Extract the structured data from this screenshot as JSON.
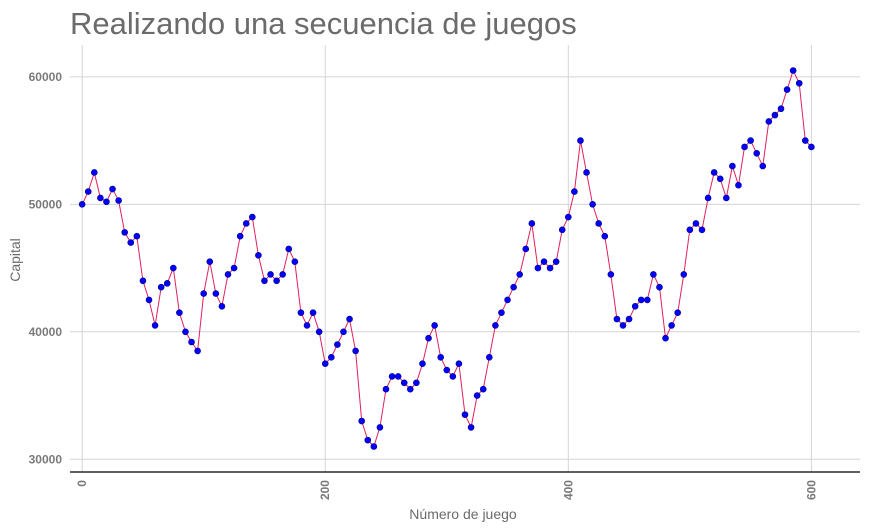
{
  "chart_data": {
    "type": "line",
    "title": "Realizando una secuencia de juegos",
    "xlabel": "Número de juego",
    "ylabel": "Capital",
    "xlim": [
      -10,
      640
    ],
    "ylim": [
      29000,
      62500
    ],
    "x_ticks": [
      0,
      200,
      400,
      600
    ],
    "y_ticks": [
      30000,
      40000,
      50000,
      60000
    ],
    "x_tick_labels": [
      "0",
      "200",
      "400",
      "600"
    ],
    "y_tick_labels": [
      "30000",
      "40000",
      "50000",
      "60000"
    ],
    "grid": true,
    "markers": true,
    "colors": {
      "line": "#e0205a",
      "marker": "#0000ff",
      "marker_edge": "#00008b",
      "grid": "#d4d4d4",
      "axis": "#000000"
    },
    "series": [
      {
        "x": [
          0,
          5,
          10,
          15,
          20,
          25,
          30,
          35,
          40,
          45,
          50,
          55,
          60,
          65,
          70,
          75,
          80,
          85,
          90,
          95,
          100,
          105,
          110,
          115,
          120,
          125,
          130,
          135,
          140,
          145,
          150,
          155,
          160,
          165,
          170,
          175,
          180,
          185,
          190,
          195,
          200,
          205,
          210,
          215,
          220,
          225,
          230,
          235,
          240,
          245,
          250,
          255,
          260,
          265,
          270,
          275,
          280,
          285,
          290,
          295,
          300,
          305,
          310,
          315,
          320,
          325,
          330,
          335,
          340,
          345,
          350,
          355,
          360,
          365,
          370,
          375,
          380,
          385,
          390,
          395,
          400,
          405,
          410,
          415,
          420,
          425,
          430,
          435,
          440,
          445,
          450,
          455,
          460,
          465,
          470,
          475,
          480,
          485,
          490,
          495,
          500,
          505,
          510,
          515,
          520,
          525,
          530,
          535,
          540,
          545,
          550,
          555,
          560,
          565,
          570,
          575,
          580,
          585,
          590,
          595,
          600
        ],
        "values": [
          50000,
          51000,
          52500,
          50500,
          50200,
          51200,
          50300,
          47800,
          47000,
          47500,
          44000,
          42500,
          40500,
          43500,
          43800,
          45000,
          41500,
          40000,
          39200,
          38500,
          43000,
          45500,
          43000,
          42000,
          44500,
          45000,
          47500,
          48500,
          49000,
          46000,
          44000,
          44500,
          44000,
          44500,
          46500,
          45500,
          41500,
          40500,
          41500,
          40000,
          37500,
          38000,
          39000,
          40000,
          41000,
          38500,
          33000,
          31500,
          31000,
          32500,
          35500,
          36500,
          36500,
          36000,
          35500,
          36000,
          37500,
          39500,
          40500,
          38000,
          37000,
          36500,
          37500,
          33500,
          32500,
          35000,
          35500,
          38000,
          40500,
          41500,
          42500,
          43500,
          44500,
          46500,
          48500,
          45000,
          45500,
          45000,
          45500,
          48000,
          49000,
          51000,
          55000,
          52500,
          50000,
          48500,
          47500,
          44500,
          41000,
          40500,
          41000,
          42000,
          42500,
          42500,
          44500,
          43500,
          39500,
          40500,
          41500,
          44500,
          48000,
          48500,
          48000,
          50500,
          52500,
          52000,
          50500,
          53000,
          51500,
          54500,
          55000,
          54000,
          53000,
          56500,
          57000,
          57500,
          59000,
          60500,
          59500,
          55000,
          54500
        ]
      }
    ]
  }
}
